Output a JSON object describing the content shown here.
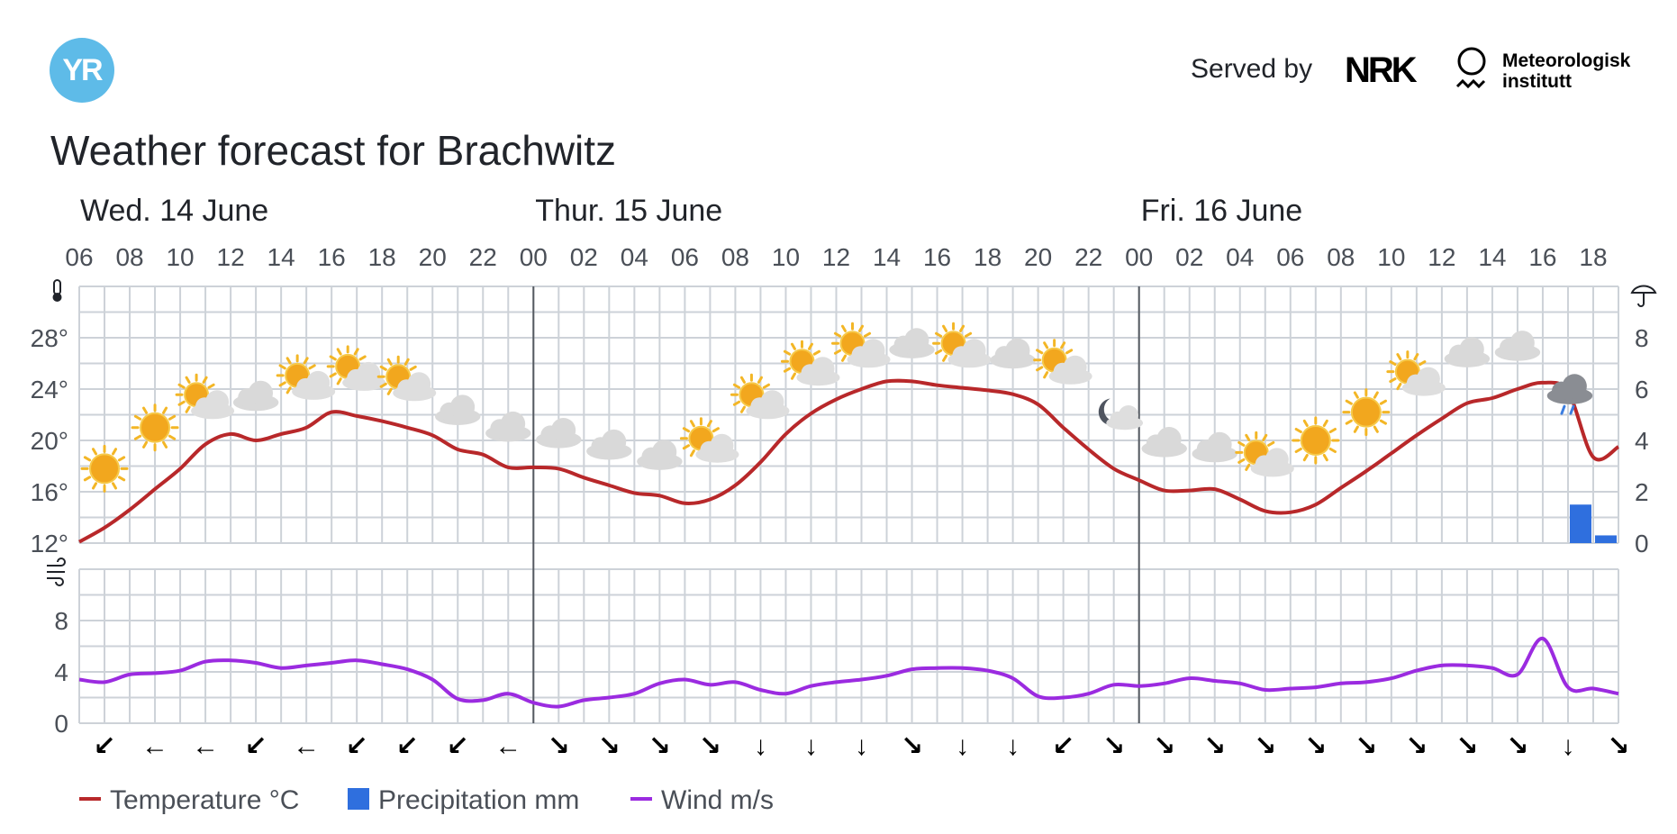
{
  "header": {
    "logo_text": "YR",
    "served_by": "Served by",
    "nrk_logo_text": "NRK",
    "met_line1": "Meteorologisk",
    "met_line2": "institutt",
    "title": "Weather forecast for Brachwitz"
  },
  "chart_data": {
    "type": "line",
    "days": [
      {
        "label": "Wed. 14 June",
        "start_hour": 6
      },
      {
        "label": "Thur. 15 June",
        "start_hour": 24
      },
      {
        "label": "Fri. 16 June",
        "start_hour": 48
      }
    ],
    "x_tick_labels": [
      "06",
      "08",
      "10",
      "12",
      "14",
      "16",
      "18",
      "20",
      "22",
      "00",
      "02",
      "04",
      "06",
      "08",
      "10",
      "12",
      "14",
      "16",
      "18",
      "20",
      "22",
      "00",
      "02",
      "04",
      "06",
      "08",
      "10",
      "12",
      "14",
      "16",
      "18"
    ],
    "x_range_hours": [
      6,
      67
    ],
    "temperature": {
      "unit": "°C",
      "ylim": [
        12,
        32
      ],
      "y_tick_labels": [
        "28°",
        "24°",
        "20°",
        "16°",
        "12°"
      ],
      "y_ticks": [
        28,
        24,
        20,
        16,
        12
      ],
      "color": "#b8282a",
      "hours": [
        6,
        7,
        8,
        9,
        10,
        11,
        12,
        13,
        14,
        15,
        16,
        17,
        18,
        19,
        20,
        21,
        22,
        23,
        24,
        25,
        26,
        27,
        28,
        29,
        30,
        31,
        32,
        33,
        34,
        35,
        36,
        37,
        38,
        39,
        40,
        41,
        42,
        43,
        44,
        45,
        46,
        47,
        48,
        49,
        50,
        51,
        52,
        53,
        54,
        55,
        56,
        57,
        58,
        59,
        60,
        61,
        62,
        63,
        64,
        65,
        66,
        67
      ],
      "values": [
        12.1,
        13.2,
        14.6,
        16.2,
        17.8,
        19.7,
        20.5,
        20.0,
        20.5,
        21.0,
        22.2,
        21.9,
        21.5,
        21.0,
        20.4,
        19.3,
        18.9,
        17.9,
        17.9,
        17.8,
        17.1,
        16.5,
        15.9,
        15.7,
        15.1,
        15.4,
        16.5,
        18.3,
        20.5,
        22.1,
        23.2,
        24.0,
        24.6,
        24.6,
        24.3,
        24.1,
        23.9,
        23.6,
        22.8,
        21.0,
        19.3,
        17.8,
        16.9,
        16.1,
        16.1,
        16.2,
        15.4,
        14.5,
        14.4,
        15.0,
        16.3,
        17.6,
        19.0,
        20.4,
        21.7,
        22.9,
        23.3,
        24.0,
        24.5,
        23.8,
        18.7,
        19.5
      ]
    },
    "precipitation": {
      "unit": "mm",
      "ylim": [
        0,
        10
      ],
      "y_tick_labels": [
        "8",
        "6",
        "4",
        "2",
        "0"
      ],
      "y_ticks": [
        8,
        6,
        4,
        2,
        0
      ],
      "color": "#2f6fde",
      "bars": [
        {
          "hour": 65,
          "value": 1.5
        },
        {
          "hour": 66,
          "value": 0.3
        }
      ]
    },
    "wind": {
      "unit": "m/s",
      "ylim": [
        0,
        12
      ],
      "y_tick_labels": [
        "8",
        "4",
        "0"
      ],
      "y_ticks": [
        8,
        4,
        0
      ],
      "color": "#9b2be0",
      "hours": [
        6,
        7,
        8,
        9,
        10,
        11,
        12,
        13,
        14,
        15,
        16,
        17,
        18,
        19,
        20,
        21,
        22,
        23,
        24,
        25,
        26,
        27,
        28,
        29,
        30,
        31,
        32,
        33,
        34,
        35,
        36,
        37,
        38,
        39,
        40,
        41,
        42,
        43,
        44,
        45,
        46,
        47,
        48,
        49,
        50,
        51,
        52,
        53,
        54,
        55,
        56,
        57,
        58,
        59,
        60,
        61,
        62,
        63,
        64,
        65,
        66,
        67
      ],
      "values": [
        3.4,
        3.2,
        3.8,
        3.9,
        4.1,
        4.8,
        4.9,
        4.7,
        4.3,
        4.5,
        4.7,
        4.9,
        4.6,
        4.2,
        3.4,
        1.9,
        1.8,
        2.3,
        1.6,
        1.3,
        1.8,
        2.0,
        2.3,
        3.1,
        3.4,
        3.0,
        3.2,
        2.6,
        2.3,
        2.9,
        3.2,
        3.4,
        3.7,
        4.2,
        4.3,
        4.3,
        4.1,
        3.5,
        2.1,
        2.0,
        2.3,
        3.0,
        2.9,
        3.1,
        3.5,
        3.3,
        3.1,
        2.6,
        2.7,
        2.8,
        3.1,
        3.2,
        3.5,
        4.1,
        4.5,
        4.5,
        4.3,
        3.8,
        6.6,
        2.8,
        2.7,
        2.3
      ]
    },
    "weather_icons": [
      {
        "hour": 7,
        "icon": "clear-sky-day",
        "temp": 17.8
      },
      {
        "hour": 9,
        "icon": "clear-sky-day",
        "temp": 21.0
      },
      {
        "hour": 11,
        "icon": "partly-cloudy-day",
        "temp": 23.0
      },
      {
        "hour": 13,
        "icon": "cloudy",
        "temp": 23.4
      },
      {
        "hour": 15,
        "icon": "partly-cloudy-day",
        "temp": 24.5
      },
      {
        "hour": 17,
        "icon": "partly-cloudy-day",
        "temp": 25.2
      },
      {
        "hour": 19,
        "icon": "partly-cloudy-day",
        "temp": 24.4
      },
      {
        "hour": 21,
        "icon": "cloudy",
        "temp": 22.3
      },
      {
        "hour": 23,
        "icon": "cloudy",
        "temp": 21.0
      },
      {
        "hour": 25,
        "icon": "cloudy",
        "temp": 20.5
      },
      {
        "hour": 27,
        "icon": "cloudy",
        "temp": 19.6
      },
      {
        "hour": 29,
        "icon": "cloudy",
        "temp": 18.8
      },
      {
        "hour": 31,
        "icon": "partly-cloudy-day",
        "temp": 19.6
      },
      {
        "hour": 33,
        "icon": "partly-cloudy-day",
        "temp": 23.0
      },
      {
        "hour": 35,
        "icon": "partly-cloudy-day",
        "temp": 25.6
      },
      {
        "hour": 37,
        "icon": "partly-cloudy-day",
        "temp": 27.0
      },
      {
        "hour": 39,
        "icon": "cloudy",
        "temp": 27.5
      },
      {
        "hour": 41,
        "icon": "partly-cloudy-day",
        "temp": 27.0
      },
      {
        "hour": 43,
        "icon": "cloudy",
        "temp": 26.7
      },
      {
        "hour": 45,
        "icon": "partly-cloudy-day",
        "temp": 25.7
      },
      {
        "hour": 47,
        "icon": "partly-cloudy-night",
        "temp": 22.0
      },
      {
        "hour": 49,
        "icon": "cloudy",
        "temp": 19.8
      },
      {
        "hour": 51,
        "icon": "cloudy",
        "temp": 19.4
      },
      {
        "hour": 53,
        "icon": "partly-cloudy-day",
        "temp": 18.5
      },
      {
        "hour": 55,
        "icon": "clear-sky-day",
        "temp": 20.0
      },
      {
        "hour": 57,
        "icon": "clear-sky-day",
        "temp": 22.2
      },
      {
        "hour": 59,
        "icon": "partly-cloudy-day",
        "temp": 24.8
      },
      {
        "hour": 61,
        "icon": "cloudy",
        "temp": 26.8
      },
      {
        "hour": 63,
        "icon": "cloudy",
        "temp": 27.3
      },
      {
        "hour": 65,
        "icon": "rain-cloudy",
        "temp": 23.5
      }
    ],
    "wind_directions": [
      {
        "hour": 7,
        "arrow": "↙"
      },
      {
        "hour": 9,
        "arrow": "←"
      },
      {
        "hour": 11,
        "arrow": "←"
      },
      {
        "hour": 13,
        "arrow": "↙"
      },
      {
        "hour": 15,
        "arrow": "←"
      },
      {
        "hour": 17,
        "arrow": "↙"
      },
      {
        "hour": 19,
        "arrow": "↙"
      },
      {
        "hour": 21,
        "arrow": "↙"
      },
      {
        "hour": 23,
        "arrow": "←"
      },
      {
        "hour": 25,
        "arrow": "↘"
      },
      {
        "hour": 27,
        "arrow": "↘"
      },
      {
        "hour": 29,
        "arrow": "↘"
      },
      {
        "hour": 31,
        "arrow": "↘"
      },
      {
        "hour": 33,
        "arrow": "↓"
      },
      {
        "hour": 35,
        "arrow": "↓"
      },
      {
        "hour": 37,
        "arrow": "↓"
      },
      {
        "hour": 39,
        "arrow": "↘"
      },
      {
        "hour": 41,
        "arrow": "↓"
      },
      {
        "hour": 43,
        "arrow": "↓"
      },
      {
        "hour": 45,
        "arrow": "↙"
      },
      {
        "hour": 47,
        "arrow": "↘"
      },
      {
        "hour": 49,
        "arrow": "↘"
      },
      {
        "hour": 51,
        "arrow": "↘"
      },
      {
        "hour": 53,
        "arrow": "↘"
      },
      {
        "hour": 55,
        "arrow": "↘"
      },
      {
        "hour": 57,
        "arrow": "↘"
      },
      {
        "hour": 59,
        "arrow": "↘"
      },
      {
        "hour": 61,
        "arrow": "↘"
      },
      {
        "hour": 63,
        "arrow": "↘"
      },
      {
        "hour": 65,
        "arrow": "↓"
      },
      {
        "hour": 67,
        "arrow": "↘"
      }
    ],
    "legend": [
      {
        "label": "Temperature °C",
        "color": "#b8282a",
        "marker": "line"
      },
      {
        "label": "Precipitation mm",
        "color": "#2f6fde",
        "marker": "square"
      },
      {
        "label": "Wind m/s",
        "color": "#9b2be0",
        "marker": "line"
      }
    ],
    "legend_position": "bottom-left",
    "grid": true
  }
}
